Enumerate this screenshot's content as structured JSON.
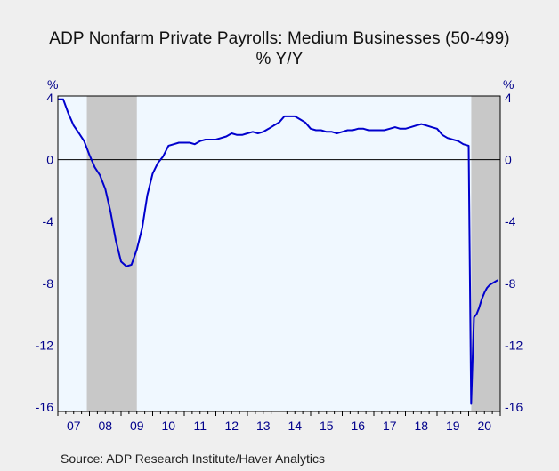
{
  "chart_data": {
    "type": "line",
    "title": "ADP Nonfarm Private Payrolls: Medium Businesses (50-499)",
    "subtitle": "% Y/Y",
    "y_unit_left": "%",
    "y_unit_right": "%",
    "source": "Source:  ADP Research Institute/Haver Analytics",
    "ylim": [
      -16,
      4
    ],
    "yticks": [
      4,
      0,
      -4,
      -8,
      -12,
      -16
    ],
    "xlim": [
      2007.0,
      2021.0
    ],
    "xtick_labels": [
      "07",
      "08",
      "09",
      "10",
      "11",
      "12",
      "13",
      "14",
      "15",
      "16",
      "17",
      "18",
      "19",
      "20"
    ],
    "grid": false,
    "zero_line": true,
    "recessions": [
      [
        2007.917,
        2009.5
      ],
      [
        2020.083,
        2021.0
      ]
    ],
    "colors": {
      "line": "#0000cd",
      "recession": "#c8c8c8",
      "plot_bg": "#f0f8ff",
      "axis_text": "#00008b"
    },
    "series": [
      {
        "x": [
          2007.0,
          2007.17,
          2007.33,
          2007.5,
          2007.67,
          2007.83,
          2008.0,
          2008.17,
          2008.33,
          2008.5,
          2008.67,
          2008.83,
          2009.0,
          2009.17,
          2009.33,
          2009.5,
          2009.67,
          2009.83,
          2010.0,
          2010.17,
          2010.33,
          2010.5,
          2010.67,
          2010.83,
          2011.0,
          2011.17,
          2011.33,
          2011.5,
          2011.67,
          2011.83,
          2012.0,
          2012.17,
          2012.33,
          2012.5,
          2012.67,
          2012.83,
          2013.0,
          2013.17,
          2013.33,
          2013.5,
          2013.67,
          2013.83,
          2014.0,
          2014.17,
          2014.33,
          2014.5,
          2014.67,
          2014.83,
          2015.0,
          2015.17,
          2015.33,
          2015.5,
          2015.67,
          2015.83,
          2016.0,
          2016.17,
          2016.33,
          2016.5,
          2016.67,
          2016.83,
          2017.0,
          2017.17,
          2017.33,
          2017.5,
          2017.67,
          2017.83,
          2018.0,
          2018.17,
          2018.33,
          2018.5,
          2018.67,
          2018.83,
          2019.0,
          2019.17,
          2019.33,
          2019.5,
          2019.67,
          2019.83,
          2020.0,
          2020.08,
          2020.17,
          2020.25,
          2020.33,
          2020.42,
          2020.5,
          2020.58,
          2020.67,
          2020.75,
          2020.83,
          2020.92
        ],
        "y": [
          3.9,
          3.9,
          3.0,
          2.2,
          1.7,
          1.2,
          0.3,
          -0.5,
          -1.0,
          -1.9,
          -3.4,
          -5.2,
          -6.6,
          -6.9,
          -6.8,
          -5.8,
          -4.4,
          -2.3,
          -0.9,
          -0.2,
          0.2,
          0.9,
          1.0,
          1.1,
          1.1,
          1.1,
          1.0,
          1.2,
          1.3,
          1.3,
          1.3,
          1.4,
          1.5,
          1.7,
          1.6,
          1.6,
          1.7,
          1.8,
          1.7,
          1.8,
          2.0,
          2.2,
          2.4,
          2.8,
          2.8,
          2.8,
          2.6,
          2.4,
          2.0,
          1.9,
          1.9,
          1.8,
          1.8,
          1.7,
          1.8,
          1.9,
          1.9,
          2.0,
          2.0,
          1.9,
          1.9,
          1.9,
          1.9,
          2.0,
          2.1,
          2.0,
          2.0,
          2.1,
          2.2,
          2.3,
          2.2,
          2.1,
          2.0,
          1.6,
          1.4,
          1.3,
          1.2,
          1.0,
          0.9,
          -15.8,
          -10.2,
          -10.0,
          -9.6,
          -9.0,
          -8.6,
          -8.3,
          -8.1,
          -8.0,
          -7.9,
          -7.8
        ]
      }
    ]
  }
}
